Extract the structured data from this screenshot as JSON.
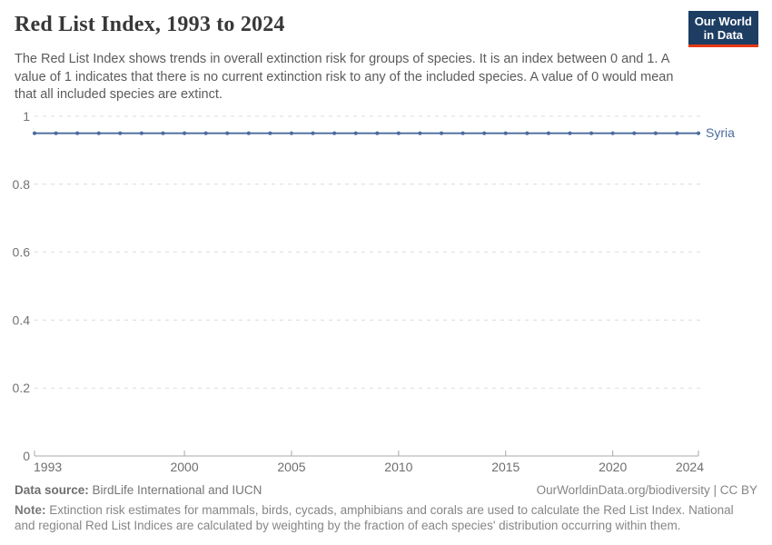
{
  "header": {
    "title": "Red List Index, 1993 to 2024",
    "subtitle": "The Red List Index shows trends in overall extinction risk for groups of species. It is an index between 0 and 1. A value of 1 indicates that there is no current extinction risk to any of the included species. A value of 0 would mean that all included species are extinct.",
    "logo": {
      "line1": "Our World",
      "line2": "in Data",
      "bg": "#1d3d63",
      "accent": "#e63912"
    }
  },
  "chart_data": {
    "type": "line",
    "title": "Red List Index, 1993 to 2024",
    "x": [
      1993,
      1994,
      1995,
      1996,
      1997,
      1998,
      1999,
      2000,
      2001,
      2002,
      2003,
      2004,
      2005,
      2006,
      2007,
      2008,
      2009,
      2010,
      2011,
      2012,
      2013,
      2014,
      2015,
      2016,
      2017,
      2018,
      2019,
      2020,
      2021,
      2022,
      2023,
      2024
    ],
    "series": [
      {
        "name": "Syria",
        "color": "#4c6a9c",
        "values": [
          0.95,
          0.95,
          0.95,
          0.95,
          0.95,
          0.95,
          0.95,
          0.95,
          0.95,
          0.95,
          0.95,
          0.95,
          0.95,
          0.95,
          0.95,
          0.95,
          0.95,
          0.95,
          0.95,
          0.95,
          0.95,
          0.95,
          0.95,
          0.95,
          0.95,
          0.95,
          0.95,
          0.95,
          0.95,
          0.95,
          0.95,
          0.95
        ]
      }
    ],
    "xlim": [
      1993,
      2024
    ],
    "ylim": [
      0,
      1
    ],
    "xticks": [
      1993,
      2000,
      2005,
      2010,
      2015,
      2020,
      2024
    ],
    "yticks": [
      0,
      0.2,
      0.4,
      0.6,
      0.8,
      1
    ],
    "ytick_labels": [
      "0",
      "0.2",
      "0.4",
      "0.6",
      "0.8",
      "1"
    ],
    "grid": "horizontal-dashed",
    "legend_position": "end-of-line-label",
    "colors": {
      "gridline": "#dcdcdc",
      "axis": "#a8a8a8",
      "tick_label": "#737373"
    }
  },
  "footer": {
    "datasource_label": "Data source:",
    "datasource_value": " BirdLife International and IUCN",
    "attribution": "OurWorldinData.org/biodiversity | CC BY",
    "note_label": "Note:",
    "note_value": " Extinction risk estimates for mammals, birds, cycads, amphibians and corals are used to calculate the Red List Index. National and regional Red List Indices are calculated by weighting by the fraction of each species' distribution occurring within them."
  }
}
